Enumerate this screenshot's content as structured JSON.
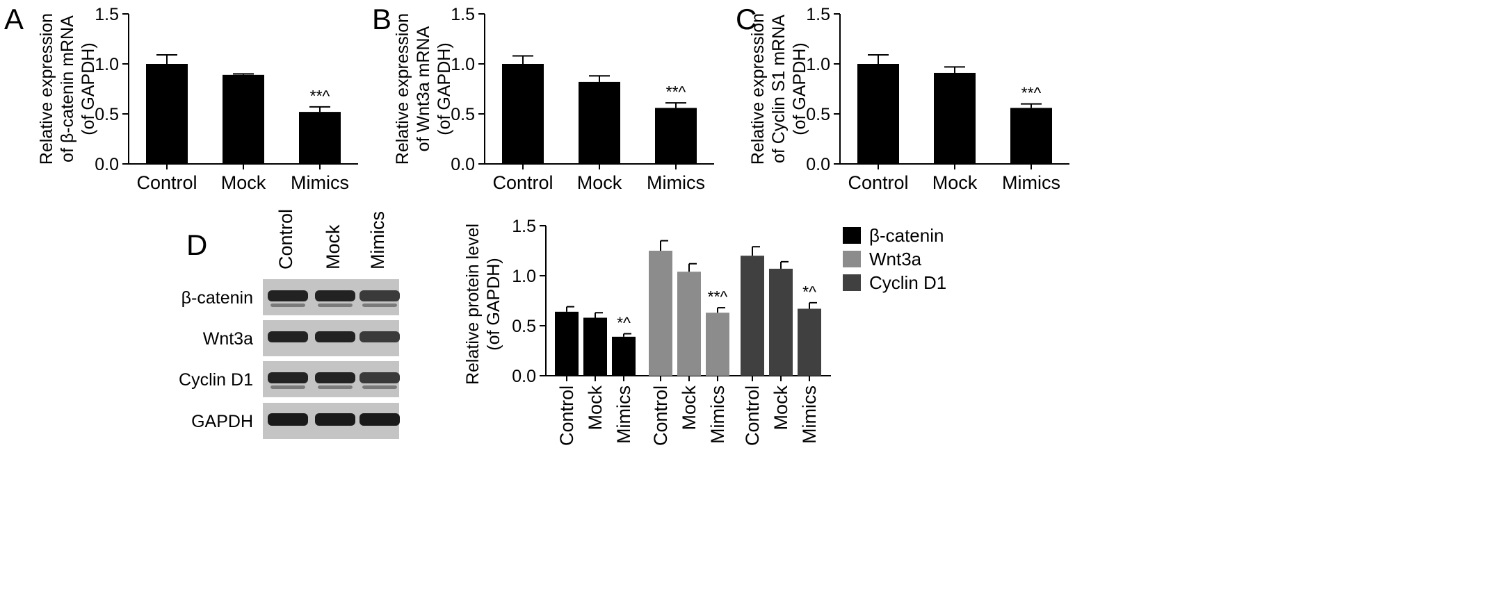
{
  "figure": {
    "panels": [
      "A",
      "B",
      "C",
      "D"
    ]
  },
  "chart_data": [
    {
      "panel": "A",
      "type": "bar",
      "categories": [
        "Control",
        "Mock",
        "Mimics"
      ],
      "values": [
        1.0,
        0.89,
        0.52
      ],
      "errors": [
        0.09,
        0.01,
        0.05
      ],
      "annotations": [
        "",
        "",
        "**^"
      ],
      "ylabel": [
        "Relative expression",
        "of β-catenin mRNA",
        "(of GAPDH)"
      ],
      "ylim": [
        0,
        1.5
      ],
      "yticks": [
        "0.0",
        "0.5",
        "1.0",
        "1.5"
      ],
      "color": "#000000"
    },
    {
      "panel": "B",
      "type": "bar",
      "categories": [
        "Control",
        "Mock",
        "Mimics"
      ],
      "values": [
        1.0,
        0.82,
        0.56
      ],
      "errors": [
        0.08,
        0.06,
        0.05
      ],
      "annotations": [
        "",
        "",
        "**^"
      ],
      "ylabel": [
        "Relative expression",
        "of Wnt3a mRNA",
        "(of GAPDH)"
      ],
      "ylim": [
        0,
        1.5
      ],
      "yticks": [
        "0.0",
        "0.5",
        "1.0",
        "1.5"
      ],
      "color": "#000000"
    },
    {
      "panel": "C",
      "type": "bar",
      "categories": [
        "Control",
        "Mock",
        "Mimics"
      ],
      "values": [
        1.0,
        0.91,
        0.56
      ],
      "errors": [
        0.09,
        0.06,
        0.04
      ],
      "annotations": [
        "",
        "",
        "**^"
      ],
      "ylabel": [
        "Relative expression",
        "of Cyclin S1 mRNA",
        "(of GAPDH)"
      ],
      "ylim": [
        0,
        1.5
      ],
      "yticks": [
        "0.0",
        "0.5",
        "1.0",
        "1.5"
      ],
      "color": "#000000"
    },
    {
      "panel": "D",
      "type": "bar",
      "categories": [
        "Control",
        "Mock",
        "Mimics"
      ],
      "series": [
        {
          "name": "β-catenin",
          "values": [
            0.64,
            0.58,
            0.39
          ],
          "errors": [
            0.05,
            0.05,
            0.03
          ],
          "annotations": [
            "",
            "",
            "*^"
          ],
          "color": "#000000"
        },
        {
          "name": "Wnt3a",
          "values": [
            1.25,
            1.04,
            0.63
          ],
          "errors": [
            0.1,
            0.08,
            0.05
          ],
          "annotations": [
            "",
            "",
            "**^"
          ],
          "color": "#8c8c8c"
        },
        {
          "name": "Cyclin D1",
          "values": [
            1.2,
            1.07,
            0.67
          ],
          "errors": [
            0.09,
            0.07,
            0.06
          ],
          "annotations": [
            "",
            "",
            "*^"
          ],
          "color": "#404040"
        }
      ],
      "ylabel": [
        "Relative protein level",
        "(of GAPDH)"
      ],
      "ylim": [
        0,
        1.5
      ],
      "yticks": [
        "0.0",
        "0.5",
        "1.0",
        "1.5"
      ],
      "legend": "top-right"
    }
  ],
  "western_blot": {
    "columns": [
      "Control",
      "Mock",
      "Mimics"
    ],
    "rows": [
      "β-catenin",
      "Wnt3a",
      "Cyclin D1",
      "GAPDH"
    ]
  }
}
